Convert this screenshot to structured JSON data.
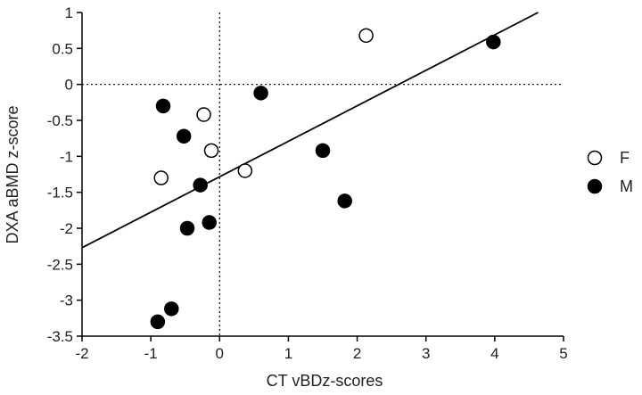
{
  "chart_data": {
    "type": "scatter",
    "xlabel": "CT vBDz-scores",
    "ylabel": "DXA aBMD z-score",
    "xlim": [
      -2,
      5
    ],
    "ylim": [
      -3.5,
      1
    ],
    "x_ticks": [
      "-2",
      "-1",
      "0",
      "1",
      "2",
      "3",
      "4",
      "5"
    ],
    "y_ticks": [
      "1",
      "0.5",
      "0",
      "-0.5",
      "-1",
      "-1.5",
      "-2",
      "-2.5",
      "-3",
      "-3.5"
    ],
    "reference_lines": {
      "x": 0,
      "y": 0,
      "style": "dotted"
    },
    "legend_position": "right",
    "series": [
      {
        "name": "F",
        "marker": "open-circle",
        "points": [
          {
            "x": -0.85,
            "y": -1.3
          },
          {
            "x": -0.23,
            "y": -0.42
          },
          {
            "x": -0.12,
            "y": -0.92
          },
          {
            "x": 0.37,
            "y": -1.2
          },
          {
            "x": 2.13,
            "y": 0.68
          }
        ]
      },
      {
        "name": "M",
        "marker": "filled-circle",
        "points": [
          {
            "x": -0.82,
            "y": -0.3
          },
          {
            "x": -0.52,
            "y": -0.72
          },
          {
            "x": -0.28,
            "y": -1.4
          },
          {
            "x": -0.47,
            "y": -2.0
          },
          {
            "x": -0.15,
            "y": -1.92
          },
          {
            "x": -0.7,
            "y": -3.12
          },
          {
            "x": -0.9,
            "y": -3.3
          },
          {
            "x": 0.6,
            "y": -0.12
          },
          {
            "x": 1.5,
            "y": -0.92
          },
          {
            "x": 1.82,
            "y": -1.62
          },
          {
            "x": 3.98,
            "y": 0.59
          }
        ]
      }
    ],
    "regression_line": {
      "x": [
        -2,
        4.63
      ],
      "y": [
        -2.27,
        1
      ]
    },
    "colors": {
      "axis": "#000000",
      "marker_fill": "#000000",
      "open_fill": "#ffffff"
    }
  }
}
